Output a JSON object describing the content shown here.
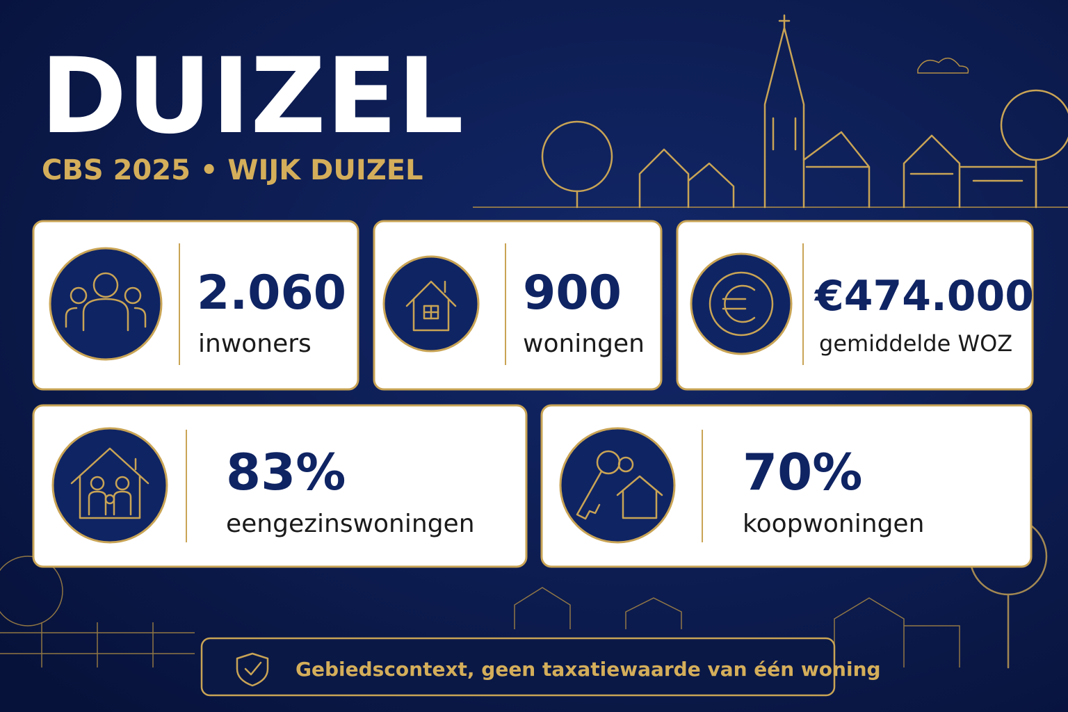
{
  "header": {
    "title": "DUIZEL",
    "subtitle": "CBS 2025 • WIJK DUIZEL"
  },
  "cards": [
    {
      "value": "2.060",
      "label": "inwoners"
    },
    {
      "value": "900",
      "label": "woningen"
    },
    {
      "value": "€474.000",
      "label": "gemiddelde WOZ"
    },
    {
      "value": "83%",
      "label": "eengezinswoningen"
    },
    {
      "value": "70%",
      "label": "koopwoningen"
    }
  ],
  "footer": {
    "note": "Gebiedscontext, geen taxatiewaarde van één woning"
  }
}
